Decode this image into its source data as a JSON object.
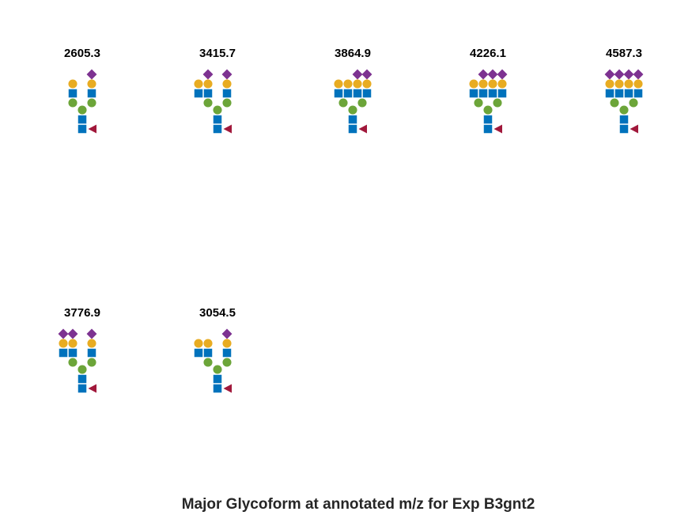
{
  "title": "Major Glycoform at annotated m/z for Exp B3gnt2",
  "colors": {
    "glcnac": "#0072BC",
    "mannose": "#6CA539",
    "galactose": "#E8AC22",
    "sialic_acid": "#7D3291",
    "fucose": "#A1183B"
  },
  "glycans": [
    {
      "mz": "2605.3",
      "antennae": [
        [
          1,
          1,
          0
        ],
        [
          1,
          1,
          1
        ]
      ]
    },
    {
      "mz": "3415.7",
      "antennae": [
        [
          2,
          2,
          1
        ],
        [
          1,
          1,
          1
        ]
      ]
    },
    {
      "mz": "3864.9",
      "antennae": [
        [
          4,
          4,
          2
        ]
      ]
    },
    {
      "mz": "4226.1",
      "antennae": [
        [
          4,
          4,
          3
        ]
      ]
    },
    {
      "mz": "4587.3",
      "antennae": [
        [
          4,
          4,
          4
        ]
      ]
    },
    {
      "mz": "3776.9",
      "antennae": [
        [
          2,
          2,
          2
        ],
        [
          1,
          1,
          1
        ]
      ]
    },
    {
      "mz": "3054.5",
      "antennae": [
        [
          2,
          2,
          0
        ],
        [
          1,
          1,
          1
        ]
      ]
    }
  ]
}
